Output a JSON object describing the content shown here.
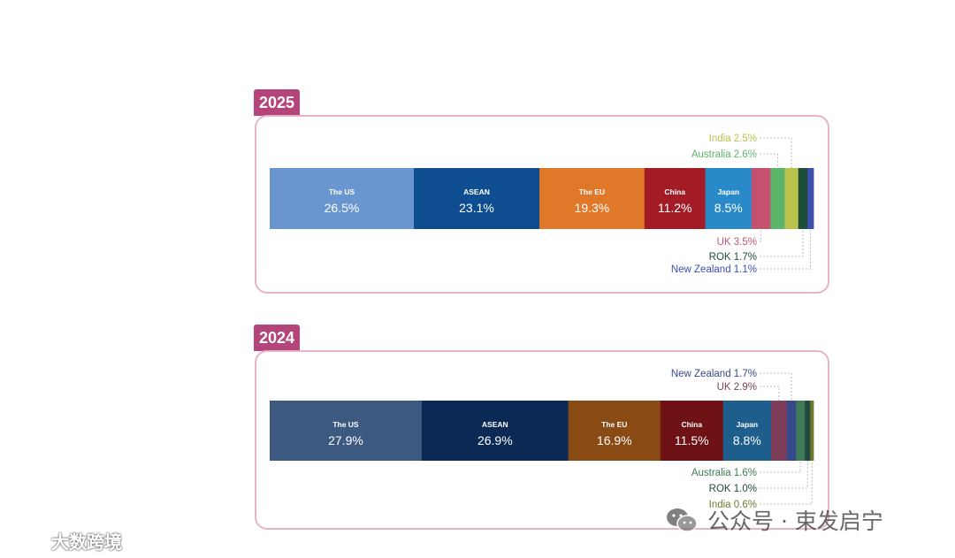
{
  "chart_data": [
    {
      "type": "bar",
      "orientation": "horizontal-stacked-100",
      "year_label": "2025",
      "series": [
        {
          "name": "The US",
          "value": 26.5,
          "color": "#6a96d0"
        },
        {
          "name": "ASEAN",
          "value": 23.1,
          "color": "#0e4d8f"
        },
        {
          "name": "The EU",
          "value": 19.3,
          "color": "#e0782a"
        },
        {
          "name": "China",
          "value": 11.2,
          "color": "#a31c25"
        },
        {
          "name": "Japan",
          "value": 8.5,
          "color": "#2a8ac9"
        },
        {
          "name": "UK",
          "value": 3.5,
          "color": "#c4526e"
        },
        {
          "name": "Australia",
          "value": 2.6,
          "color": "#5cb36a"
        },
        {
          "name": "India",
          "value": 2.5,
          "color": "#b9c24a"
        },
        {
          "name": "ROK",
          "value": 1.7,
          "color": "#1e4d3a"
        },
        {
          "name": "New Zealand",
          "value": 1.1,
          "color": "#3d4fb0"
        }
      ],
      "inline_labels": [
        {
          "name": "The US",
          "text": "26.5%"
        },
        {
          "name": "ASEAN",
          "text": "23.1%"
        },
        {
          "name": "The EU",
          "text": "19.3%"
        },
        {
          "name": "China",
          "text": "11.2%"
        },
        {
          "name": "Japan",
          "text": "8.5%"
        }
      ],
      "callouts_above": [
        "India 2.5%",
        "Australia 2.6%"
      ],
      "callouts_below": [
        "UK 3.5%",
        "ROK 1.7%",
        "New Zealand 1.1%"
      ]
    },
    {
      "type": "bar",
      "orientation": "horizontal-stacked-100",
      "year_label": "2024",
      "series": [
        {
          "name": "The US",
          "value": 27.9,
          "color": "#3c5a80"
        },
        {
          "name": "ASEAN",
          "value": 26.9,
          "color": "#0a2a55"
        },
        {
          "name": "The EU",
          "value": 16.9,
          "color": "#8a4a14"
        },
        {
          "name": "China",
          "value": 11.5,
          "color": "#6e1216"
        },
        {
          "name": "Japan",
          "value": 8.8,
          "color": "#1d5e8c"
        },
        {
          "name": "UK",
          "value": 2.9,
          "color": "#7e3e5a"
        },
        {
          "name": "New Zealand",
          "value": 1.7,
          "color": "#364a8a"
        },
        {
          "name": "Australia",
          "value": 1.6,
          "color": "#3f7a56"
        },
        {
          "name": "ROK",
          "value": 1.0,
          "color": "#234a3c"
        },
        {
          "name": "India",
          "value": 0.6,
          "color": "#6f7a2e"
        }
      ],
      "inline_labels": [
        {
          "name": "The US",
          "text": "27.9%"
        },
        {
          "name": "ASEAN",
          "text": "26.9%"
        },
        {
          "name": "The EU",
          "text": "16.9%"
        },
        {
          "name": "China",
          "text": "11.5%"
        },
        {
          "name": "Japan",
          "text": "8.8%"
        }
      ],
      "callouts_above": [
        "New Zealand 1.7%",
        "UK 2.9%"
      ],
      "callouts_below": [
        "Australia 1.6%",
        "ROK 1.0%",
        "India 0.6%"
      ]
    }
  ],
  "watermark": {
    "right_text": "公众号 · 束发启宁",
    "left_text": "大数跨境"
  }
}
